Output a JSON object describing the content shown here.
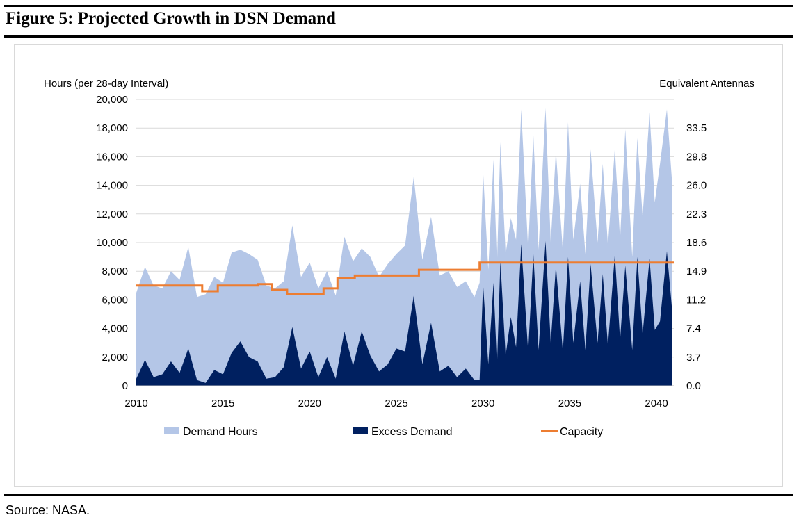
{
  "figure_title": "Figure 5: Projected Growth in DSN Demand",
  "source": "Source: NASA.",
  "colors": {
    "demand": "#b4c6e7",
    "excess": "#002060",
    "capacity": "#ed7d31",
    "grid": "#d9d9d9"
  },
  "chart_data": {
    "type": "area",
    "title": "",
    "ylabel": "Hours (per 28-day Interval)",
    "y2label": "Equivalent Antennas",
    "xlim": [
      2010,
      2041
    ],
    "ylim": [
      0,
      20000
    ],
    "x_ticks": [
      "2010",
      "2015",
      "2020",
      "2025",
      "2030",
      "2035",
      "2040"
    ],
    "y_ticks": [
      "0",
      "2,000",
      "4,000",
      "6,000",
      "8,000",
      "10,000",
      "12,000",
      "14,000",
      "16,000",
      "18,000",
      "20,000"
    ],
    "y2_ticks": [
      "0.0",
      "3.7",
      "7.4",
      "11.2",
      "14.9",
      "18.6",
      "22.3",
      "26.0",
      "29.8",
      "33.5"
    ],
    "legend_position": "bottom",
    "series": [
      {
        "name": "Demand Hours",
        "type": "area",
        "x": [
          2010.0,
          2010.5,
          2011.0,
          2011.5,
          2012.0,
          2012.5,
          2013.0,
          2013.5,
          2014.0,
          2014.5,
          2015.0,
          2015.5,
          2016.0,
          2016.5,
          2017.0,
          2017.5,
          2018.0,
          2018.5,
          2019.0,
          2019.5,
          2020.0,
          2020.5,
          2021.0,
          2021.5,
          2022.0,
          2022.5,
          2023.0,
          2023.5,
          2024.0,
          2024.5,
          2025.0,
          2025.5,
          2026.0,
          2026.5,
          2027.0,
          2027.5,
          2028.0,
          2028.5,
          2029.0,
          2029.5,
          2029.8,
          2030.0,
          2030.3,
          2030.6,
          2030.8,
          2031.0,
          2031.3,
          2031.6,
          2031.9,
          2032.2,
          2032.6,
          2032.9,
          2033.2,
          2033.6,
          2033.9,
          2034.2,
          2034.6,
          2034.9,
          2035.2,
          2035.6,
          2035.9,
          2036.2,
          2036.6,
          2036.9,
          2037.2,
          2037.6,
          2037.9,
          2038.2,
          2038.6,
          2038.9,
          2039.2,
          2039.6,
          2039.9,
          2040.2,
          2040.6,
          2040.9
        ],
        "values": [
          6500,
          8300,
          7000,
          6800,
          8000,
          7400,
          9700,
          6200,
          6400,
          7600,
          7200,
          9300,
          9500,
          9200,
          8800,
          7000,
          6800,
          7300,
          11200,
          7600,
          8600,
          6800,
          8000,
          6300,
          10400,
          8700,
          9600,
          9000,
          7600,
          8500,
          9200,
          9800,
          14600,
          8800,
          11800,
          7700,
          8000,
          6900,
          7300,
          6200,
          7200,
          15000,
          8100,
          15800,
          8400,
          17000,
          9200,
          11700,
          10200,
          19300,
          9500,
          17500,
          9500,
          19400,
          10000,
          16400,
          9400,
          18400,
          10200,
          14100,
          9200,
          16500,
          10000,
          15500,
          9800,
          16600,
          10200,
          17900,
          9000,
          17300,
          11800,
          19100,
          12800,
          15500,
          19300,
          14200
        ]
      },
      {
        "name": "Excess Demand",
        "type": "area",
        "x": [
          2010.0,
          2010.5,
          2011.0,
          2011.5,
          2012.0,
          2012.5,
          2013.0,
          2013.5,
          2014.0,
          2014.5,
          2015.0,
          2015.5,
          2016.0,
          2016.5,
          2017.0,
          2017.5,
          2018.0,
          2018.5,
          2019.0,
          2019.5,
          2020.0,
          2020.5,
          2021.0,
          2021.5,
          2022.0,
          2022.5,
          2023.0,
          2023.5,
          2024.0,
          2024.5,
          2025.0,
          2025.5,
          2026.0,
          2026.5,
          2027.0,
          2027.5,
          2028.0,
          2028.5,
          2029.0,
          2029.5,
          2029.8,
          2030.0,
          2030.3,
          2030.6,
          2030.8,
          2031.0,
          2031.3,
          2031.6,
          2031.9,
          2032.2,
          2032.6,
          2032.9,
          2033.2,
          2033.6,
          2033.9,
          2034.2,
          2034.6,
          2034.9,
          2035.2,
          2035.6,
          2035.9,
          2036.2,
          2036.6,
          2036.9,
          2037.2,
          2037.6,
          2037.9,
          2038.2,
          2038.6,
          2038.9,
          2039.2,
          2039.6,
          2039.9,
          2040.2,
          2040.6,
          2040.9
        ],
        "values": [
          500,
          1800,
          600,
          800,
          1700,
          900,
          2600,
          400,
          200,
          1100,
          800,
          2300,
          3100,
          2000,
          1700,
          500,
          600,
          1300,
          4100,
          1200,
          2400,
          600,
          2000,
          500,
          3800,
          1400,
          3800,
          2100,
          1000,
          1500,
          2600,
          2400,
          6300,
          1500,
          4400,
          1000,
          1400,
          600,
          1200,
          400,
          400,
          7100,
          1500,
          7200,
          1400,
          8700,
          2100,
          4800,
          2700,
          9900,
          2400,
          9200,
          2500,
          10100,
          3000,
          8400,
          2400,
          9000,
          3000,
          7300,
          2500,
          8500,
          3000,
          7800,
          2800,
          9200,
          3200,
          8400,
          2500,
          9000,
          3600,
          8900,
          3900,
          4500,
          9400,
          5300
        ]
      },
      {
        "name": "Capacity",
        "type": "step",
        "x": [
          2010.0,
          2013.8,
          2014.7,
          2017.0,
          2017.8,
          2018.7,
          2020.8,
          2021.6,
          2022.6,
          2026.3,
          2029.8,
          2041.0
        ],
        "values": [
          7000,
          6600,
          7000,
          7100,
          6700,
          6400,
          6800,
          7500,
          7700,
          8100,
          8600,
          8600
        ]
      }
    ]
  }
}
